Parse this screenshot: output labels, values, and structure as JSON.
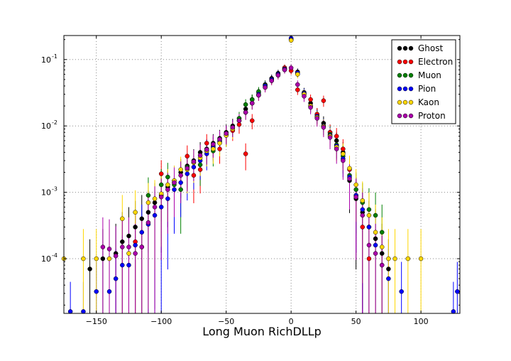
{
  "chart_data": {
    "type": "scatter",
    "title": "",
    "xlabel": "Long Muon RichDLLp",
    "ylabel": "",
    "xlim": [
      -175,
      130
    ],
    "ylim": [
      1.5e-05,
      0.23
    ],
    "yscale": "log",
    "grid": true,
    "legend_position": "top-right",
    "x_ticks": [
      -150,
      -100,
      -50,
      0,
      50,
      100
    ],
    "x_tick_labels": [
      "−150",
      "−100",
      "−50",
      "0",
      "50",
      "100"
    ],
    "y_ticks": [
      0.0001,
      0.001,
      0.01,
      0.1
    ],
    "y_tick_labels": [
      {
        "base": "10",
        "exp": "-4"
      },
      {
        "base": "10",
        "exp": "-3"
      },
      {
        "base": "10",
        "exp": "-2"
      },
      {
        "base": "10",
        "exp": "-1"
      }
    ],
    "series": [
      {
        "name": "Ghost",
        "color": "#000000",
        "x": [
          -155,
          -145,
          -135,
          -130,
          -125,
          -120,
          -115,
          -110,
          -105,
          -100,
          -95,
          -90,
          -85,
          -80,
          -75,
          -70,
          -65,
          -60,
          -55,
          -50,
          -45,
          -40,
          -35,
          -30,
          -25,
          -20,
          -15,
          -10,
          -5,
          0,
          5,
          10,
          15,
          20,
          25,
          30,
          35,
          40,
          45,
          50,
          55,
          60,
          65,
          70,
          75
        ],
        "y": [
          7e-05,
          0.0001,
          0.00012,
          0.00018,
          0.00022,
          0.0003,
          0.0004,
          0.0005,
          0.0007,
          0.0009,
          0.0012,
          0.0015,
          0.002,
          0.0025,
          0.003,
          0.004,
          0.0045,
          0.0055,
          0.0065,
          0.008,
          0.01,
          0.013,
          0.018,
          0.025,
          0.032,
          0.042,
          0.052,
          0.062,
          0.075,
          0.2,
          0.065,
          0.032,
          0.022,
          0.015,
          0.011,
          0.008,
          0.006,
          0.004,
          0.0015,
          0.0008,
          0.0005,
          0.0003,
          0.0002,
          0.00012,
          7e-05
        ]
      },
      {
        "name": "Electron",
        "color": "#ff0000",
        "x": [
          -120,
          -100,
          -90,
          -80,
          -75,
          -70,
          -65,
          -60,
          -55,
          -50,
          -45,
          -40,
          -35,
          -30,
          -25,
          -20,
          -15,
          -10,
          -5,
          0,
          5,
          10,
          15,
          20,
          25,
          30,
          35,
          40,
          45,
          50,
          55,
          60
        ],
        "y": [
          0.00018,
          0.0019,
          0.0014,
          0.0035,
          0.0018,
          0.0022,
          0.0055,
          0.005,
          0.0045,
          0.0075,
          0.0085,
          0.0105,
          0.0038,
          0.012,
          0.029,
          0.04,
          0.05,
          0.06,
          0.075,
          0.068,
          0.035,
          0.03,
          0.025,
          0.015,
          0.024,
          0.008,
          0.007,
          0.0045,
          0.0022,
          0.0009,
          0.0003,
          0.0001
        ]
      },
      {
        "name": "Muon",
        "color": "#008000",
        "x": [
          -110,
          -100,
          -95,
          -90,
          -85,
          -80,
          -75,
          -70,
          -65,
          -60,
          -55,
          -50,
          -45,
          -40,
          -35,
          -30,
          -25,
          -20,
          -15,
          -10,
          -5,
          0,
          5,
          10,
          15,
          20,
          25,
          30,
          35,
          40,
          45,
          50,
          55,
          60,
          65,
          70
        ],
        "y": [
          0.0009,
          0.0013,
          0.0017,
          0.0013,
          0.0011,
          0.0024,
          0.0028,
          0.0026,
          0.0042,
          0.0042,
          0.0058,
          0.0072,
          0.0095,
          0.013,
          0.021,
          0.025,
          0.033,
          0.041,
          0.05,
          0.06,
          0.072,
          0.2,
          0.062,
          0.031,
          0.02,
          0.014,
          0.01,
          0.0075,
          0.0052,
          0.0035,
          0.0018,
          0.0011,
          0.0007,
          0.00055,
          0.00045,
          0.00025
        ]
      },
      {
        "name": "Pion",
        "color": "#0000ff",
        "x": [
          -170,
          -160,
          -150,
          -140,
          -135,
          -130,
          -125,
          -120,
          -115,
          -110,
          -105,
          -100,
          -95,
          -90,
          -85,
          -80,
          -75,
          -70,
          -65,
          -60,
          -55,
          -50,
          -45,
          -40,
          -35,
          -30,
          -25,
          -20,
          -15,
          -10,
          -5,
          0,
          5,
          10,
          15,
          20,
          25,
          30,
          35,
          40,
          45,
          50,
          55,
          60,
          65,
          70,
          75,
          85,
          125,
          128
        ],
        "y": [
          1.6e-05,
          1.6e-05,
          3.2e-05,
          3.2e-05,
          5e-05,
          8e-05,
          8e-05,
          0.00016,
          0.00025,
          0.00033,
          0.00045,
          0.0006,
          0.0008,
          0.0011,
          0.0014,
          0.0019,
          0.0024,
          0.003,
          0.0038,
          0.0048,
          0.006,
          0.0075,
          0.0095,
          0.012,
          0.016,
          0.022,
          0.03,
          0.04,
          0.05,
          0.06,
          0.072,
          0.21,
          0.063,
          0.031,
          0.02,
          0.014,
          0.01,
          0.0072,
          0.005,
          0.0032,
          0.0017,
          0.0009,
          0.00055,
          0.0003,
          0.00016,
          8e-05,
          5e-05,
          3.2e-05,
          1.6e-05,
          3.2e-05
        ]
      },
      {
        "name": "Kaon",
        "color": "#ffd700",
        "x": [
          -175,
          -160,
          -150,
          -140,
          -130,
          -125,
          -120,
          -115,
          -110,
          -105,
          -100,
          -95,
          -90,
          -85,
          -80,
          -75,
          -70,
          -65,
          -60,
          -55,
          -50,
          -45,
          -40,
          -35,
          -30,
          -25,
          -20,
          -15,
          -10,
          -5,
          0,
          5,
          10,
          15,
          20,
          25,
          30,
          35,
          40,
          45,
          50,
          55,
          60,
          65,
          70,
          75,
          80,
          90,
          100
        ],
        "y": [
          0.0001,
          0.0001,
          0.0001,
          0.0001,
          0.0004,
          0.00012,
          0.0005,
          0.00015,
          0.0007,
          0.0008,
          0.00095,
          0.0013,
          0.0015,
          0.0022,
          0.0022,
          0.0028,
          0.0033,
          0.0042,
          0.0045,
          0.0055,
          0.0072,
          0.009,
          0.012,
          0.016,
          0.022,
          0.029,
          0.038,
          0.048,
          0.058,
          0.07,
          0.195,
          0.06,
          0.03,
          0.02,
          0.0135,
          0.0098,
          0.007,
          0.0048,
          0.0038,
          0.0023,
          0.0013,
          0.00075,
          0.00045,
          0.00025,
          0.00015,
          0.0001,
          0.0001,
          0.0001,
          0.0001
        ]
      },
      {
        "name": "Proton",
        "color": "#aa00aa",
        "x": [
          -145,
          -140,
          -135,
          -130,
          -125,
          -120,
          -115,
          -110,
          -105,
          -100,
          -95,
          -90,
          -85,
          -80,
          -75,
          -70,
          -65,
          -60,
          -55,
          -50,
          -45,
          -40,
          -35,
          -30,
          -25,
          -20,
          -15,
          -10,
          -5,
          0,
          5,
          10,
          15,
          20,
          25,
          30,
          35,
          40,
          45,
          50,
          55,
          60,
          65,
          70
        ],
        "y": [
          0.00015,
          0.00014,
          0.00011,
          0.00015,
          0.00015,
          0.00012,
          0.00015,
          0.00035,
          0.0006,
          0.00085,
          0.0011,
          0.0014,
          0.0018,
          0.0023,
          0.0029,
          0.0036,
          0.0044,
          0.0053,
          0.0063,
          0.0077,
          0.0095,
          0.012,
          0.016,
          0.022,
          0.029,
          0.038,
          0.048,
          0.058,
          0.07,
          0.075,
          0.042,
          0.028,
          0.019,
          0.013,
          0.0095,
          0.0067,
          0.0045,
          0.003,
          0.0016,
          0.00085,
          0.00045,
          0.00016,
          0.00012,
          8e-05
        ]
      }
    ]
  }
}
